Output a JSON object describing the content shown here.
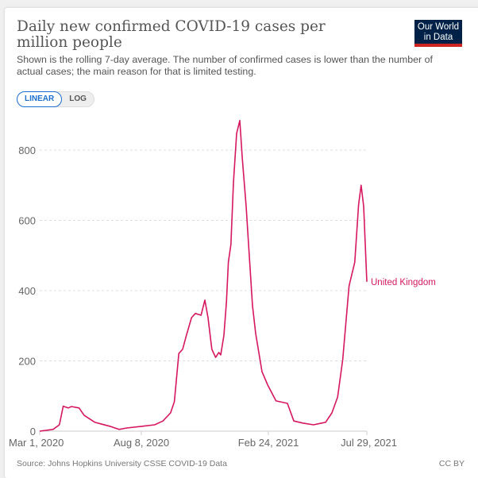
{
  "header": {
    "title": "Daily new confirmed COVID-19 cases per million people",
    "subtitle": "Shown is the rolling 7-day average. The number of confirmed cases is lower than the number of actual cases; the main reason for that is limited testing.",
    "logo_text": "Our World in Data"
  },
  "controls": {
    "linear_label": "LINEAR",
    "log_label": "LOG",
    "selected": "LINEAR"
  },
  "footer": {
    "source": "Source: Johns Hopkins University CSSE COVID-19 Data",
    "license": "CC BY"
  },
  "colors": {
    "series": "#d6175f",
    "logo_bg": "#002147",
    "logo_bar": "#ce261e",
    "accent": "#1d6fce"
  },
  "chart_data": {
    "type": "line",
    "title": "Daily new confirmed COVID-19 cases per million people",
    "xlabel": "",
    "ylabel": "",
    "xlim": [
      "2020-03-01",
      "2021-07-29"
    ],
    "ylim": [
      0,
      880
    ],
    "x_ticks": [
      "Mar 1, 2020",
      "Aug 8, 2020",
      "Feb 24, 2021",
      "Jul 29, 2021"
    ],
    "x_tick_dates": [
      "2020-03-01",
      "2020-08-08",
      "2021-02-24",
      "2021-07-29"
    ],
    "y_ticks": [
      0,
      200,
      400,
      600,
      800
    ],
    "grid": "horizontal dashed",
    "legend": "inline label at line end",
    "series": [
      {
        "name": "United Kingdom",
        "x": [
          "2020-03-01",
          "2020-03-22",
          "2020-04-01",
          "2020-04-07",
          "2020-04-15",
          "2020-04-20",
          "2020-05-02",
          "2020-05-10",
          "2020-05-27",
          "2020-06-21",
          "2020-07-04",
          "2020-07-16",
          "2020-08-10",
          "2020-08-29",
          "2020-09-11",
          "2020-09-23",
          "2020-09-29",
          "2020-10-06",
          "2020-10-12",
          "2020-10-18",
          "2020-10-26",
          "2020-11-01",
          "2020-11-10",
          "2020-11-16",
          "2020-11-21",
          "2020-11-27",
          "2020-12-03",
          "2020-12-08",
          "2020-12-11",
          "2020-12-16",
          "2020-12-20",
          "2020-12-23",
          "2020-12-27",
          "2020-12-31",
          "2021-01-05",
          "2021-01-10",
          "2021-01-14",
          "2021-01-20",
          "2021-01-24",
          "2021-01-30",
          "2021-02-04",
          "2021-02-14",
          "2021-02-23",
          "2021-03-08",
          "2021-03-26",
          "2021-04-05",
          "2021-04-19",
          "2021-05-06",
          "2021-05-19",
          "2021-05-25",
          "2021-06-04",
          "2021-06-13",
          "2021-06-21",
          "2021-07-01",
          "2021-07-10",
          "2021-07-16",
          "2021-07-20",
          "2021-07-24",
          "2021-07-29"
        ],
        "values": [
          0,
          5,
          18,
          71,
          66,
          70,
          66,
          45,
          25,
          13,
          5,
          9,
          14,
          18,
          29,
          52,
          84,
          221,
          233,
          273,
          323,
          335,
          330,
          373,
          323,
          233,
          210,
          224,
          217,
          273,
          368,
          481,
          531,
          707,
          847,
          884,
          775,
          640,
          526,
          357,
          278,
          169,
          131,
          86,
          79,
          29,
          23,
          18,
          23,
          25,
          52,
          97,
          203,
          413,
          481,
          644,
          700,
          640,
          425
        ]
      }
    ]
  }
}
